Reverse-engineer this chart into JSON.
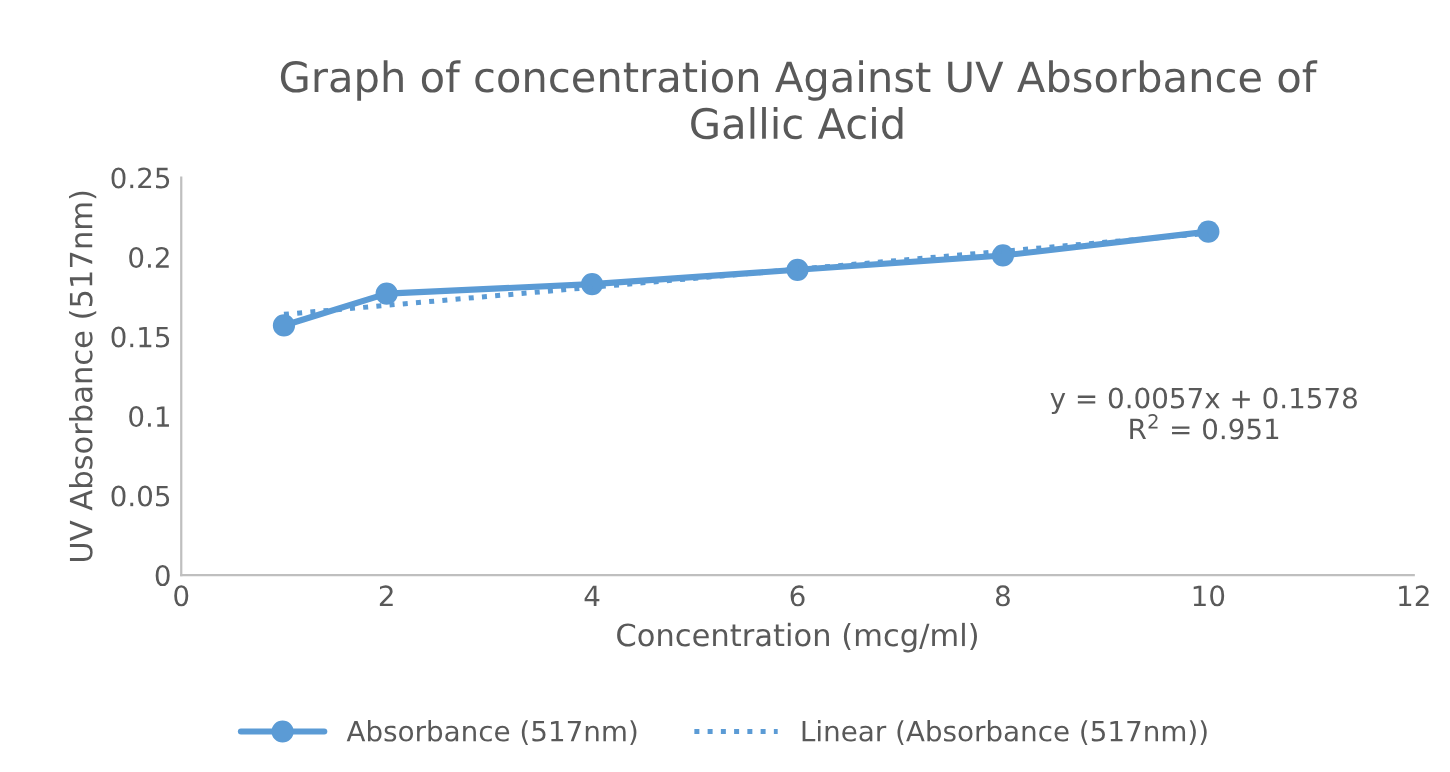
{
  "chart_data": {
    "type": "line",
    "title": "Graph of concentration Against UV Absorbance of\nGallic Acid",
    "xlabel": "Concentration (mcg/ml)",
    "ylabel": "UV Absorbance (517nm)",
    "x": [
      1,
      2,
      4,
      6,
      8,
      10
    ],
    "series": [
      {
        "name": "Absorbance (517nm)",
        "color": "#5b9bd5",
        "values": [
          0.157,
          0.177,
          0.183,
          0.192,
          0.201,
          0.216
        ],
        "marker": "circle",
        "line_style": "solid"
      },
      {
        "name": "Linear (Absorbance (517nm))",
        "color": "#5b9bd5",
        "type": "line",
        "x": [
          1,
          10
        ],
        "values": [
          0.164,
          0.215
        ],
        "marker": "none",
        "line_style": "dotted"
      }
    ],
    "annotations": [
      "y = 0.0057x + 0.1578\nR$^{2}$ = 0.951"
    ],
    "xlim": [
      0,
      12
    ],
    "xticks": [
      0,
      2,
      4,
      6,
      8,
      10,
      12
    ],
    "ylim": [
      0,
      0.25
    ],
    "yticks": [
      0,
      0.05,
      0.1,
      0.15,
      0.2,
      0.25
    ],
    "grid": false,
    "legend": "bottom"
  }
}
